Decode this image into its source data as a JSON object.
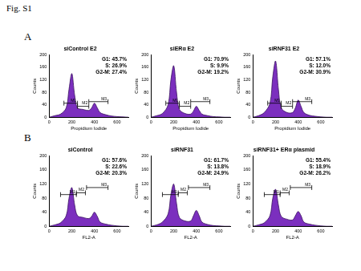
{
  "title": "Fig. S1",
  "panels": [
    "A",
    "B"
  ],
  "chart_data": [
    {
      "type": "line",
      "title": "siControl E2",
      "xlabel": "Propidium Iodide",
      "ylabel": "Counts",
      "x": [
        0,
        50,
        100,
        150,
        175,
        200,
        225,
        250,
        300,
        350,
        375,
        400,
        425,
        450,
        500,
        550,
        600,
        650,
        700
      ],
      "values": [
        0,
        5,
        10,
        30,
        90,
        140,
        70,
        30,
        25,
        22,
        30,
        45,
        30,
        15,
        8,
        4,
        2,
        1,
        0
      ],
      "color": "#7b2fbe",
      "xlim": [
        0,
        700
      ],
      "xticks": [
        0,
        200,
        400,
        600
      ],
      "ylim": [
        0,
        200
      ],
      "yticks": [
        0,
        40,
        80,
        120,
        160,
        200
      ],
      "grid": false,
      "annotations": [
        "G1: 45.7%",
        "S: 26.9%",
        "G2-M: 27.4%"
      ],
      "gates": [
        {
          "label": "M1",
          "start": 130,
          "end": 250,
          "y": 45
        },
        {
          "label": "M2",
          "start": 250,
          "end": 350,
          "y": 35
        },
        {
          "label": "M3",
          "start": 350,
          "end": 520,
          "y": 50
        }
      ]
    },
    {
      "type": "line",
      "title": "siERα E2",
      "xlabel": "Propidium Iodide",
      "ylabel": "Counts",
      "x": [
        0,
        50,
        100,
        150,
        175,
        200,
        225,
        250,
        300,
        350,
        375,
        400,
        425,
        450,
        500,
        550,
        600,
        650,
        700
      ],
      "values": [
        0,
        5,
        12,
        40,
        120,
        165,
        80,
        25,
        12,
        10,
        20,
        35,
        22,
        10,
        5,
        2,
        1,
        0,
        0
      ],
      "color": "#7b2fbe",
      "xlim": [
        0,
        700
      ],
      "xticks": [
        0,
        200,
        400,
        600
      ],
      "ylim": [
        0,
        200
      ],
      "yticks": [
        0,
        40,
        80,
        120,
        160,
        200
      ],
      "grid": false,
      "annotations": [
        "G1: 70.9%",
        "S: 9.9%",
        "G2-M: 19.2%"
      ],
      "gates": [
        {
          "label": "M1",
          "start": 130,
          "end": 250,
          "y": 45
        },
        {
          "label": "M2",
          "start": 250,
          "end": 350,
          "y": 35
        },
        {
          "label": "M3",
          "start": 350,
          "end": 520,
          "y": 50
        }
      ]
    },
    {
      "type": "line",
      "title": "siRNF31 E2",
      "xlabel": "Propidium Iodide",
      "ylabel": "Counts",
      "x": [
        0,
        50,
        100,
        150,
        175,
        200,
        225,
        250,
        300,
        350,
        375,
        400,
        425,
        450,
        500,
        550,
        600,
        650,
        700
      ],
      "values": [
        0,
        5,
        15,
        45,
        130,
        180,
        90,
        30,
        15,
        15,
        30,
        55,
        35,
        15,
        6,
        3,
        1,
        0,
        0
      ],
      "color": "#7b2fbe",
      "xlim": [
        0,
        700
      ],
      "xticks": [
        0,
        200,
        400,
        600
      ],
      "ylim": [
        0,
        200
      ],
      "yticks": [
        0,
        40,
        80,
        120,
        160,
        200
      ],
      "grid": false,
      "annotations": [
        "G1: 57.1%",
        "S: 12.0%",
        "G2-M: 30.9%"
      ],
      "gates": [
        {
          "label": "M1",
          "start": 130,
          "end": 250,
          "y": 45
        },
        {
          "label": "M2",
          "start": 250,
          "end": 350,
          "y": 35
        },
        {
          "label": "M3",
          "start": 350,
          "end": 520,
          "y": 50
        }
      ]
    },
    {
      "type": "line",
      "title": "siControl",
      "xlabel": "FL2-A",
      "ylabel": "Counts",
      "x": [
        0,
        50,
        100,
        150,
        175,
        200,
        225,
        250,
        300,
        350,
        375,
        400,
        425,
        450,
        500,
        550,
        600,
        650,
        700
      ],
      "values": [
        0,
        4,
        10,
        30,
        80,
        110,
        60,
        30,
        25,
        22,
        28,
        40,
        28,
        12,
        6,
        3,
        1,
        0,
        0
      ],
      "color": "#7b2fbe",
      "xlim": [
        0,
        700
      ],
      "xticks": [
        0,
        200,
        400,
        600
      ],
      "ylim": [
        0,
        200
      ],
      "yticks": [
        0,
        40,
        80,
        120,
        160,
        200
      ],
      "grid": false,
      "annotations": [
        "G1: 57.6%",
        "S: 22.6%",
        "G2-M: 20.3%"
      ],
      "gates": [
        {
          "label": "M1",
          "start": 100,
          "end": 240,
          "y": 90
        },
        {
          "label": "M2",
          "start": 240,
          "end": 320,
          "y": 95
        },
        {
          "label": "M3",
          "start": 330,
          "end": 520,
          "y": 110
        }
      ]
    },
    {
      "type": "line",
      "title": "siRNF31",
      "xlabel": "FL2-A",
      "ylabel": "Counts",
      "x": [
        0,
        50,
        100,
        150,
        175,
        200,
        225,
        250,
        300,
        350,
        375,
        400,
        425,
        450,
        500,
        550,
        600,
        650,
        700
      ],
      "values": [
        0,
        4,
        12,
        35,
        90,
        120,
        65,
        25,
        15,
        15,
        30,
        45,
        30,
        12,
        5,
        2,
        1,
        0,
        0
      ],
      "color": "#7b2fbe",
      "xlim": [
        0,
        700
      ],
      "xticks": [
        0,
        200,
        400,
        600
      ],
      "ylim": [
        0,
        200
      ],
      "yticks": [
        0,
        40,
        80,
        120,
        160,
        200
      ],
      "grid": false,
      "annotations": [
        "G1: 61.7%",
        "S: 13.8%",
        "G2-M: 24.9%"
      ],
      "gates": [
        {
          "label": "M1",
          "start": 100,
          "end": 240,
          "y": 90
        },
        {
          "label": "M2",
          "start": 240,
          "end": 320,
          "y": 95
        },
        {
          "label": "M3",
          "start": 330,
          "end": 520,
          "y": 110
        }
      ]
    },
    {
      "type": "line",
      "title": "siRNF31+ ERα plasmid",
      "xlabel": "FL2-A",
      "ylabel": "Counts",
      "x": [
        0,
        50,
        100,
        150,
        175,
        200,
        225,
        250,
        300,
        350,
        375,
        400,
        425,
        450,
        500,
        550,
        600,
        650,
        700
      ],
      "values": [
        0,
        4,
        10,
        30,
        80,
        105,
        60,
        28,
        20,
        18,
        30,
        42,
        30,
        12,
        6,
        3,
        1,
        0,
        0
      ],
      "color": "#7b2fbe",
      "xlim": [
        0,
        700
      ],
      "xticks": [
        0,
        200,
        400,
        600
      ],
      "ylim": [
        0,
        200
      ],
      "yticks": [
        0,
        40,
        80,
        120,
        160,
        200
      ],
      "grid": false,
      "annotations": [
        "G1: 55.4%",
        "S: 18.9%",
        "G2-M: 26.2%"
      ],
      "gates": [
        {
          "label": "M1",
          "start": 100,
          "end": 240,
          "y": 90
        },
        {
          "label": "M2",
          "start": 240,
          "end": 320,
          "y": 95
        },
        {
          "label": "M3",
          "start": 330,
          "end": 520,
          "y": 110
        }
      ]
    }
  ]
}
